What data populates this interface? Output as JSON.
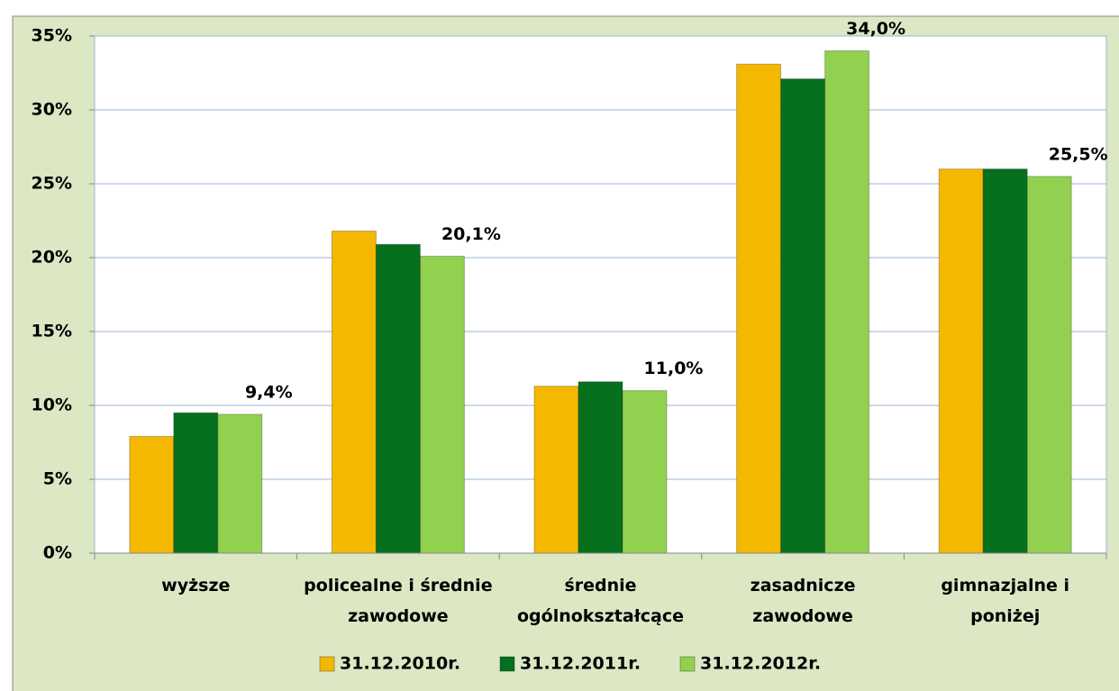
{
  "chart_data": {
    "type": "bar",
    "categories": [
      "wyższe",
      "policealne i średnie\nzawodowe",
      "średnie\nogólnokształcące",
      "zasadnicze\nzawodowe",
      "gimnazjalne i\nponiżej"
    ],
    "series": [
      {
        "name": "31.12.2010r.",
        "color": "#f5b800",
        "values": [
          7.9,
          21.8,
          11.3,
          33.1,
          26.0
        ]
      },
      {
        "name": "31.12.2011r.",
        "color": "#06701f",
        "values": [
          9.5,
          20.9,
          11.6,
          32.1,
          26.0
        ]
      },
      {
        "name": "31.12.2012r.",
        "color": "#92d050",
        "values": [
          9.4,
          20.1,
          11.0,
          34.0,
          25.5
        ],
        "value_labels": [
          "9,4%",
          "20,1%",
          "11,0%",
          "34,0%",
          "25,5%"
        ]
      }
    ],
    "ylim": [
      0,
      35
    ],
    "yticks": [
      {
        "value": 0,
        "label": "0%"
      },
      {
        "value": 5,
        "label": "5%"
      },
      {
        "value": 10,
        "label": "10%"
      },
      {
        "value": 15,
        "label": "15%"
      },
      {
        "value": 20,
        "label": "20%"
      },
      {
        "value": 25,
        "label": "25%"
      },
      {
        "value": 30,
        "label": "30%"
      },
      {
        "value": 35,
        "label": "35%"
      }
    ],
    "grid": true,
    "legend": "bottom"
  }
}
